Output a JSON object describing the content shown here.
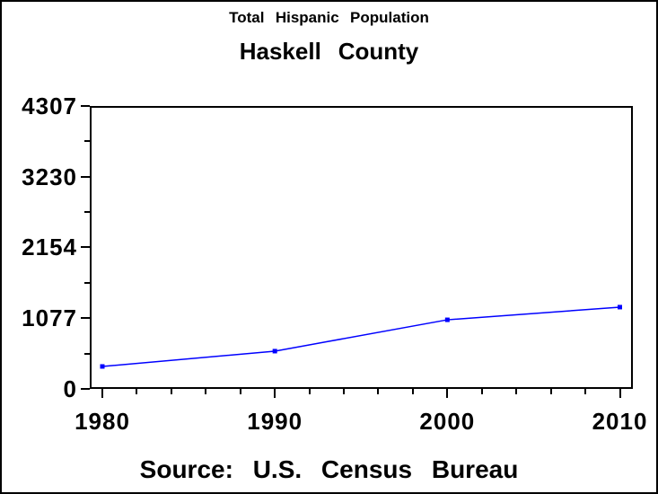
{
  "window": {
    "background": "#FFFFFF",
    "border_color": "#000000",
    "text_color": "#000000"
  },
  "chart_data": {
    "type": "line",
    "title": "Total Hispanic Population",
    "subtitle": "Haskell County",
    "footnote": "Source: U.S. Census Bureau",
    "x": [
      1980,
      1990,
      2000,
      2010
    ],
    "series": [
      {
        "name": "Total Hispanic Population",
        "values": [
          342,
          575,
          1052,
          1245
        ]
      }
    ],
    "xlim": [
      1980,
      2010
    ],
    "ylim": [
      0,
      4307
    ],
    "y_ticks": [
      0,
      1077,
      2154,
      3230,
      4307
    ],
    "y_minor_ticks_per_interval": 1,
    "x_ticks": [
      1980,
      1990,
      2000,
      2010
    ],
    "x_minor_step_years": 2,
    "grid": false,
    "legend": "none",
    "plot_frame": true,
    "line_color": "#0000FF",
    "marker": "filled-square",
    "marker_color": "#0000FF",
    "axis_color": "#000000"
  }
}
